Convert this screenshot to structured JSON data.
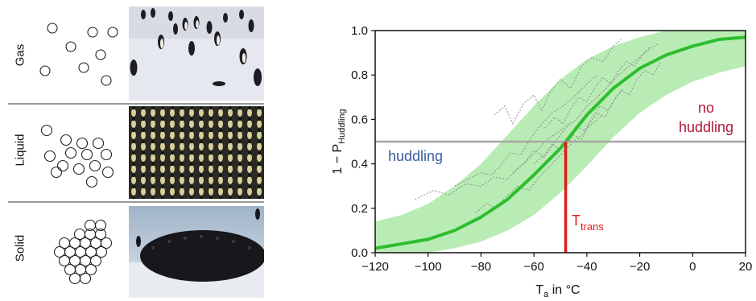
{
  "phases": [
    {
      "label": "Gas",
      "photo": "penguins-scattered-photo"
    },
    {
      "label": "Liquid",
      "photo": "penguins-dense-crowd-photo"
    },
    {
      "label": "Solid",
      "photo": "penguins-huddle-photo"
    }
  ],
  "chart_data": {
    "type": "line",
    "xlabel_main": "T",
    "xlabel_sub": "a",
    "xlabel_rest": " in °C",
    "ylabel_main": "1 − P",
    "ylabel_sub": "Huddling",
    "xlim": [
      -120,
      20
    ],
    "ylim": [
      0.0,
      1.0
    ],
    "xticks": [
      "−120",
      "−100",
      "−80",
      "−60",
      "−40",
      "−20",
      "0",
      "20"
    ],
    "xtick_values": [
      -120,
      -100,
      -80,
      -60,
      -40,
      -20,
      0,
      20
    ],
    "yticks": [
      "0.0",
      "0.2",
      "0.4",
      "0.6",
      "0.8",
      "1.0"
    ],
    "ytick_values": [
      0.0,
      0.2,
      0.4,
      0.6,
      0.8,
      1.0
    ],
    "grid": false,
    "sigmoid_curve": {
      "x": [
        -120,
        -110,
        -100,
        -90,
        -80,
        -70,
        -60,
        -50,
        -48,
        -40,
        -30,
        -20,
        -10,
        0,
        10,
        20
      ],
      "y": [
        0.02,
        0.04,
        0.06,
        0.1,
        0.16,
        0.24,
        0.35,
        0.47,
        0.5,
        0.62,
        0.74,
        0.83,
        0.89,
        0.93,
        0.96,
        0.97
      ]
    },
    "confidence_band": {
      "x": [
        -120,
        -110,
        -100,
        -90,
        -80,
        -70,
        -60,
        -50,
        -40,
        -30,
        -20,
        -10,
        0,
        10,
        20
      ],
      "upper": [
        0.14,
        0.17,
        0.22,
        0.3,
        0.4,
        0.53,
        0.66,
        0.78,
        0.87,
        0.93,
        0.97,
        1.0,
        1.0,
        1.0,
        1.0
      ],
      "lower": [
        0.0,
        0.0,
        0.0,
        0.02,
        0.05,
        0.1,
        0.17,
        0.27,
        0.39,
        0.52,
        0.63,
        0.71,
        0.77,
        0.81,
        0.84
      ]
    },
    "threshold_y": 0.5,
    "t_trans_x": -48,
    "annotations": {
      "huddling": "huddling",
      "no_huddling_line1": "no",
      "no_huddling_line2": "huddling",
      "t_trans_main": "T",
      "t_trans_sub": "trans"
    },
    "trajectories": [
      {
        "x": [
          -105,
          -98,
          -92,
          -86,
          -80,
          -75,
          -70,
          -66,
          -62,
          -58,
          -55,
          -50,
          -46
        ],
        "y": [
          0.24,
          0.28,
          0.26,
          0.31,
          0.3,
          0.34,
          0.33,
          0.38,
          0.42,
          0.47,
          0.51,
          0.55,
          0.59
        ]
      },
      {
        "x": [
          -90,
          -85,
          -80,
          -76,
          -72,
          -69,
          -65,
          -61,
          -57,
          -53,
          -49,
          -45,
          -40,
          -36
        ],
        "y": [
          0.3,
          0.33,
          0.36,
          0.35,
          0.4,
          0.45,
          0.44,
          0.52,
          0.58,
          0.63,
          0.66,
          0.7,
          0.76,
          0.8
        ]
      },
      {
        "x": [
          -75,
          -71,
          -68,
          -64,
          -60,
          -57,
          -54,
          -50,
          -46,
          -42,
          -38,
          -34,
          -30,
          -27
        ],
        "y": [
          0.62,
          0.66,
          0.58,
          0.67,
          0.71,
          0.64,
          0.72,
          0.78,
          0.74,
          0.84,
          0.88,
          0.86,
          0.93,
          0.96
        ]
      },
      {
        "x": [
          -68,
          -64,
          -60,
          -56,
          -52,
          -48,
          -44,
          -40,
          -36,
          -32,
          -28,
          -24,
          -20,
          -16,
          -13
        ],
        "y": [
          0.36,
          0.4,
          0.46,
          0.43,
          0.5,
          0.56,
          0.6,
          0.66,
          0.7,
          0.75,
          0.8,
          0.84,
          0.88,
          0.92,
          0.94
        ]
      },
      {
        "x": [
          -60,
          -56,
          -53,
          -50,
          -47,
          -44,
          -41,
          -38,
          -35,
          -32,
          -29,
          -26
        ],
        "y": [
          0.4,
          0.44,
          0.49,
          0.46,
          0.52,
          0.57,
          0.55,
          0.61,
          0.66,
          0.64,
          0.7,
          0.74
        ]
      },
      {
        "x": [
          -82,
          -78,
          -74,
          -70,
          -66,
          -62,
          -58,
          -54,
          -50,
          -46,
          -42,
          -38,
          -34
        ],
        "y": [
          0.18,
          0.22,
          0.2,
          0.26,
          0.3,
          0.28,
          0.34,
          0.39,
          0.44,
          0.49,
          0.53,
          0.58,
          0.62
        ]
      },
      {
        "x": [
          -56,
          -52,
          -49,
          -46,
          -43,
          -40,
          -37,
          -34,
          -31,
          -28,
          -25,
          -22,
          -19,
          -16
        ],
        "y": [
          0.56,
          0.61,
          0.58,
          0.65,
          0.7,
          0.68,
          0.74,
          0.79,
          0.76,
          0.82,
          0.86,
          0.84,
          0.89,
          0.93
        ]
      },
      {
        "x": [
          -48,
          -45,
          -42,
          -39,
          -36,
          -33,
          -30,
          -27,
          -24,
          -21,
          -18,
          -15,
          -12
        ],
        "y": [
          0.48,
          0.53,
          0.51,
          0.58,
          0.63,
          0.61,
          0.68,
          0.73,
          0.71,
          0.78,
          0.82,
          0.8,
          0.86
        ]
      }
    ],
    "colors": {
      "curve": "#2ebd2e",
      "band": "#b9ecb4",
      "threshold": "#a6a6a6",
      "t_trans": "#e01a1a",
      "huddling_text": "#3c5fa0",
      "no_huddling_text": "#b01a3c",
      "trajectory": "#8c8c8c"
    }
  }
}
